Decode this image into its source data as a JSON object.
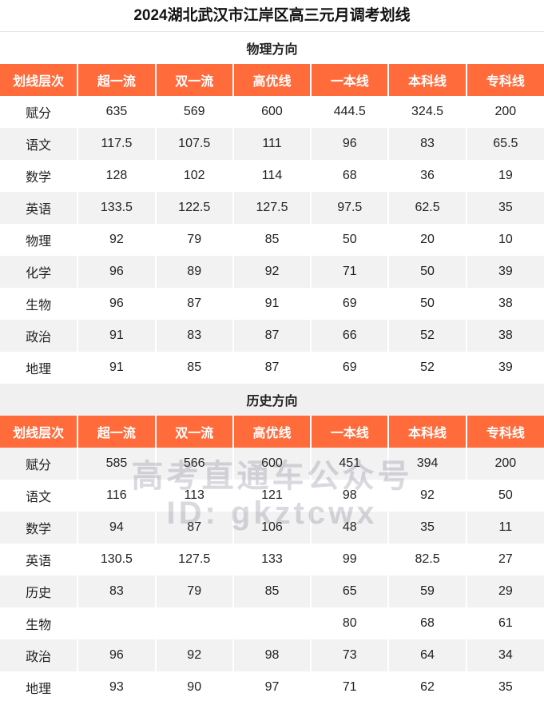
{
  "title": "2024湖北武汉市江岸区高三元月调考划线",
  "sections": [
    {
      "name": "物理方向",
      "header": [
        "划线层次",
        "超一流",
        "双一流",
        "高优线",
        "一本线",
        "本科线",
        "专科线"
      ],
      "rows": [
        [
          "赋分",
          635,
          569,
          600,
          444.5,
          324.5,
          200
        ],
        [
          "语文",
          117.5,
          107.5,
          111,
          96,
          83,
          65.5
        ],
        [
          "数学",
          128,
          102,
          114,
          68,
          36,
          19
        ],
        [
          "英语",
          133.5,
          122.5,
          127.5,
          97.5,
          62.5,
          35
        ],
        [
          "物理",
          92,
          79,
          85,
          50,
          20,
          10
        ],
        [
          "化学",
          96,
          89,
          92,
          71,
          50,
          39
        ],
        [
          "生物",
          96,
          87,
          91,
          69,
          50,
          38
        ],
        [
          "政治",
          91,
          83,
          87,
          66,
          52,
          38
        ],
        [
          "地理",
          91,
          85,
          87,
          69,
          52,
          39
        ]
      ]
    },
    {
      "name": "历史方向",
      "header": [
        "划线层次",
        "超一流",
        "双一流",
        "高优线",
        "一本线",
        "本科线",
        "专科线"
      ],
      "rows": [
        [
          "赋分",
          585,
          566,
          600,
          451,
          394,
          200
        ],
        [
          "语文",
          116,
          113,
          121,
          98,
          92,
          50
        ],
        [
          "数学",
          94,
          87,
          106,
          48,
          35,
          11
        ],
        [
          "英语",
          130.5,
          127.5,
          133,
          99,
          82.5,
          27
        ],
        [
          "历史",
          83,
          79,
          85,
          65,
          59,
          29
        ],
        [
          "生物",
          null,
          null,
          null,
          80,
          68,
          61
        ],
        [
          "政治",
          96,
          92,
          98,
          73,
          64,
          34
        ],
        [
          "地理",
          93,
          90,
          97,
          71,
          62,
          35
        ]
      ]
    }
  ],
  "watermark": [
    "高考直通车公众号",
    "ID: gkztcwx"
  ]
}
